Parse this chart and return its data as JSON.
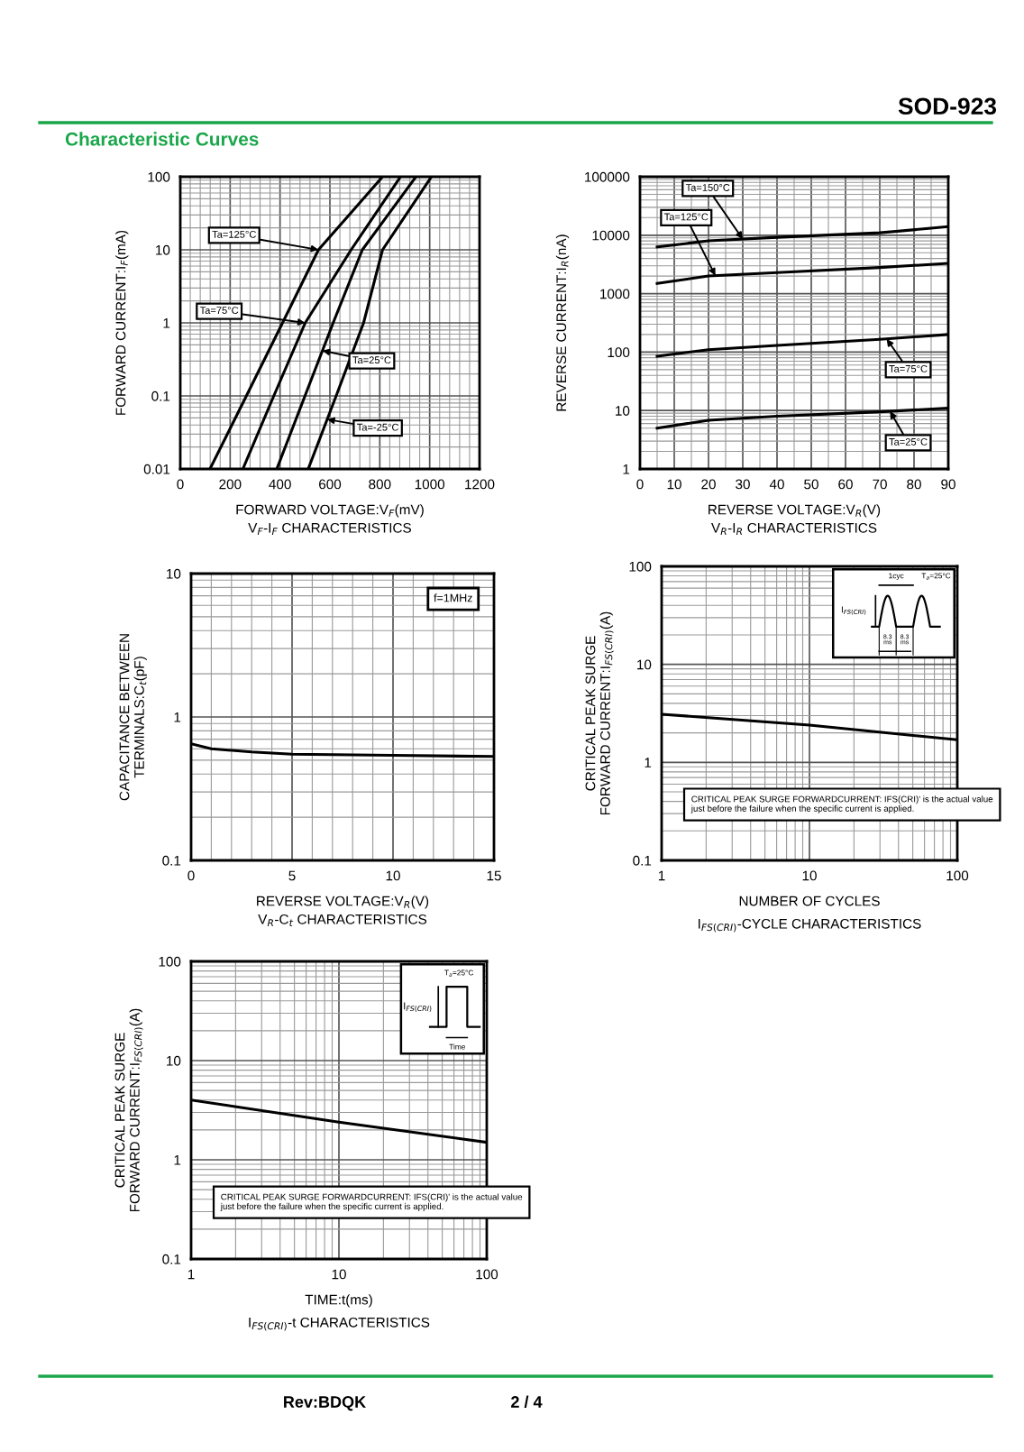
{
  "chart_data": [
    {
      "type": "line",
      "title": "Characteristic Curves",
      "xlabel": "FORWARD VOLTAGE:V$_{F}$(mV)",
      "ylabel": "FORWARD CURRENT:I$_{F}$(mA)",
      "log": "y",
      "xlim": [
        0,
        1200
      ],
      "xticks": [
        0,
        200,
        400,
        600,
        800,
        1000,
        1200
      ],
      "ylim": [
        0.01,
        100
      ],
      "yticks": [
        0.01,
        0.1,
        1,
        10,
        100
      ],
      "grid": true,
      "legend": "center",
      "marker": "none",
      "line_style": "solid",
      "annotations": [
        "V$_{F}$-I$_{F}$ CHARACTERISTICS",
        "SOD-923"
      ],
      "series": [
        {
          "name": "Ta=125°C",
          "color": "#000000",
          "x": [
            119,
            265,
            410,
            554,
            709,
            811
          ],
          "values": [
            0.01,
            0.1,
            1,
            10,
            40,
            100
          ]
        },
        {
          "name": "Ta=75°C",
          "color": "#000000",
          "x": [
            251,
            375,
            501,
            685,
            883
          ],
          "values": [
            0.01,
            0.1,
            1,
            10,
            100
          ]
        },
        {
          "name": "Ta=25°C",
          "color": "#000000",
          "x": [
            387,
            500,
            613,
            730,
            945
          ],
          "values": [
            0.01,
            0.1,
            1,
            10,
            100
          ]
        },
        {
          "name": "Ta=-25°C",
          "color": "#000000",
          "x": [
            513,
            625,
            735,
            811,
            1007
          ],
          "values": [
            0.01,
            0.1,
            1,
            10,
            100
          ]
        }
      ]
    },
    {
      "type": "line",
      "xlabel": "REVERSE VOLTAGE:V$_{R}$(V)",
      "ylabel": "REVERSE CURRENT:I$_{R}$(nA)",
      "log": "y",
      "xlim": [
        0,
        90
      ],
      "xticks": [
        0,
        10,
        20,
        30,
        40,
        50,
        60,
        70,
        80,
        90
      ],
      "ylim": [
        1,
        100000
      ],
      "yticks": [
        1,
        10,
        100,
        1000,
        10000,
        100000
      ],
      "grid": true,
      "legend": "right",
      "marker": "none",
      "line_style": "solid",
      "annotations": [
        "V$_{R}$-I$_{R}$ CHARACTERISTICS"
      ],
      "x": [
        5,
        20,
        40,
        70,
        90
      ],
      "series": [
        {
          "name": "Ta=150°C",
          "color": "#000000",
          "values": [
            6300,
            8000,
            9200,
            11000,
            14000
          ]
        },
        {
          "name": "Ta=125°C",
          "color": "#000000",
          "values": [
            1500,
            2000,
            2300,
            2800,
            3300
          ]
        },
        {
          "name": "Ta=75°C",
          "color": "#000000",
          "values": [
            85,
            110,
            130,
            165,
            200
          ]
        },
        {
          "name": "Ta=25°C",
          "color": "#000000",
          "values": [
            5,
            6.8,
            8,
            9.5,
            11
          ]
        }
      ]
    },
    {
      "type": "line",
      "xlabel": "REVERSE VOLTAGE:V$_{R}$(V)",
      "ylabel": "CAPACITANCE BETWEEN\nTERMINALS:C$_{t}$(pF)",
      "log": "y",
      "xlim": [
        0,
        15
      ],
      "xticks": [
        0,
        5,
        10,
        15
      ],
      "ylim": [
        0.1,
        10
      ],
      "yticks": [
        0.1,
        1,
        10
      ],
      "grid": true,
      "marker": "none",
      "line_style": "solid",
      "annotations": [
        "V$_{R}$-C$_{t}$ CHARACTERISTICS",
        "f=1MHz"
      ],
      "series": [
        {
          "color": "#000000",
          "x": [
            0,
            1,
            3,
            5,
            10,
            15
          ],
          "values": [
            0.65,
            0.6,
            0.57,
            0.55,
            0.54,
            0.53
          ]
        }
      ]
    },
    {
      "type": "line",
      "xlabel": "NUMBER OF CYCLES",
      "ylabel": "CRITICAL PEAK SURGE\nFORWARD CURRENT:I$_{FS(CRI)}$(A)",
      "log": "xy",
      "xlim": [
        1,
        100
      ],
      "xticks": [
        1,
        10,
        100
      ],
      "ylim": [
        0.1,
        100
      ],
      "yticks": [
        0.1,
        1,
        10,
        100
      ],
      "grid": true,
      "marker": "none",
      "line_style": "solid",
      "annotations": [
        "I$_{FS(CRI)}$-CYCLE CHARACTERISTICS",
        "CRITICAL PEAK SURGE FORWARDCURRENT: IFS(CRI)' is the actual value just before the failure when the specific current is applied.",
        "1cyc",
        "T$_{a}$=25°C",
        "I$_{FS(CRI)}$",
        "8.3\nms",
        "8.3\nms"
      ],
      "series": [
        {
          "color": "#000000",
          "x": [
            1,
            10,
            100
          ],
          "values": [
            3.1,
            2.4,
            1.7
          ]
        }
      ]
    },
    {
      "type": "line",
      "xlabel": "TIME:t(ms)",
      "ylabel": "CRITICAL PEAK SURGE\nFORWARD CURRENT:I$_{FS(CRI)}$(A)",
      "log": "xy",
      "xlim": [
        1,
        100
      ],
      "xticks": [
        1,
        10,
        100
      ],
      "ylim": [
        0.1,
        100
      ],
      "yticks": [
        0.1,
        1,
        10,
        100
      ],
      "grid": true,
      "marker": "none",
      "line_style": "solid",
      "annotations": [
        "I$_{FS(CRI)}$-t CHARACTERISTICS",
        "CRITICAL PEAK SURGE FORWARDCURRENT: IFS(CRI)' is the actual value just before the failure when the specific current is applied.",
        "T$_{a}$=25°C",
        "I$_{FS(CRI)}$",
        "Time",
        "Rev:BDQK",
        "2 / 4"
      ],
      "series": [
        {
          "color": "#000000",
          "x": [
            1,
            10,
            100
          ],
          "values": [
            4.0,
            2.4,
            1.5
          ]
        }
      ]
    }
  ]
}
